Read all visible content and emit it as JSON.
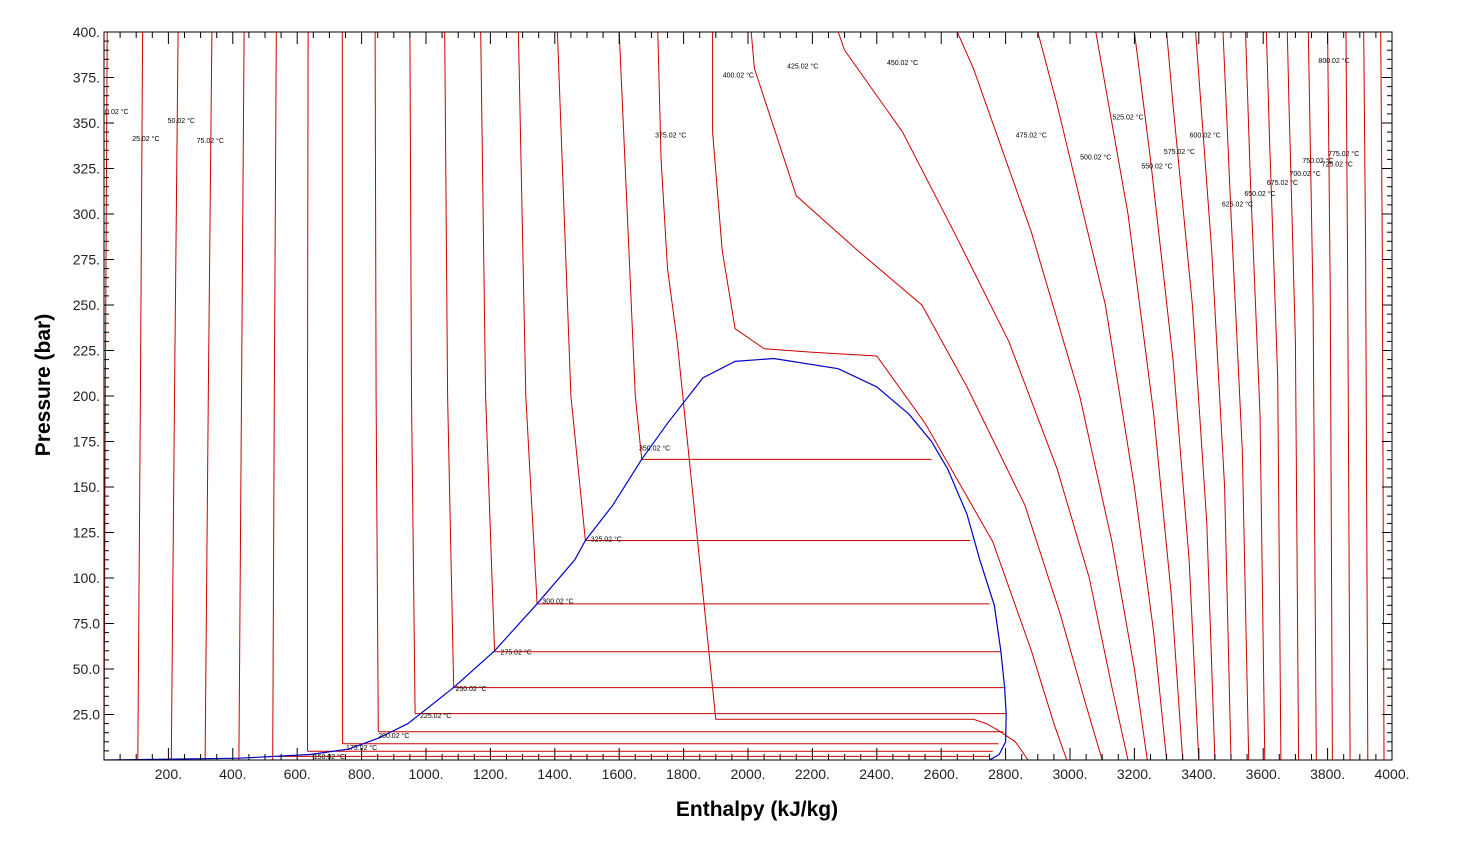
{
  "chart_data": {
    "type": "line",
    "title": "",
    "xlabel": "Enthalpy (kJ/kg)",
    "ylabel": "Pressure (bar)",
    "xlim": [
      0,
      4000
    ],
    "ylim": [
      0,
      400
    ],
    "grid": false,
    "x_ticks": [
      "200.",
      "400.",
      "600.",
      "800.",
      "1000.",
      "1200.",
      "1400.",
      "1600.",
      "1800.",
      "2000.",
      "2200.",
      "2400.",
      "2600.",
      "2800.",
      "3000.",
      "3200.",
      "3400.",
      "3600.",
      "3800.",
      "4000."
    ],
    "y_ticks": [
      "25.0",
      "50.0",
      "75.0",
      "100.",
      "125.",
      "150.",
      "175.",
      "200.",
      "225.",
      "250.",
      "275.",
      "300.",
      "325.",
      "350.",
      "375.",
      "400."
    ],
    "colors": {
      "saturation_dome": "#0000cc",
      "isotherms": "#cc0000",
      "axes": "#000000"
    },
    "saturation_dome": {
      "name": "",
      "points": [
        [
          0,
          0
        ],
        [
          420,
          1
        ],
        [
          640,
          3
        ],
        [
          760,
          6
        ],
        [
          852,
          12
        ],
        [
          944,
          20
        ],
        [
          1087,
          40
        ],
        [
          1213,
          60
        ],
        [
          1345,
          85.8
        ],
        [
          1462,
          110
        ],
        [
          1495,
          120.6
        ],
        [
          1580,
          140
        ],
        [
          1670,
          165.2
        ],
        [
          1750,
          185
        ],
        [
          1860,
          210
        ],
        [
          1960,
          219
        ],
        [
          2080,
          220.6
        ],
        [
          2280,
          215
        ],
        [
          2400,
          205
        ],
        [
          2500,
          190
        ],
        [
          2570,
          175
        ],
        [
          2620,
          160
        ],
        [
          2680,
          135
        ],
        [
          2720,
          110
        ],
        [
          2765,
          85
        ],
        [
          2785,
          60
        ],
        [
          2797,
          40
        ],
        [
          2802,
          25
        ],
        [
          2800,
          10
        ],
        [
          2780,
          3
        ],
        [
          2760,
          1
        ],
        [
          2750,
          0
        ]
      ]
    },
    "isotherms": [
      {
        "label": "0.02 °C",
        "label_pos": [
          40,
          355
        ],
        "points": [
          [
            0.1,
            0
          ],
          [
            4,
            200
          ],
          [
            10,
            400
          ]
        ]
      },
      {
        "label": "25.02 °C",
        "label_pos": [
          130,
          340
        ],
        "points": [
          [
            105,
            0
          ],
          [
            113,
            200
          ],
          [
            120,
            400
          ]
        ]
      },
      {
        "label": "50.02 °C",
        "label_pos": [
          240,
          350
        ],
        "points": [
          [
            209,
            0
          ],
          [
            219,
            200
          ],
          [
            230,
            400
          ]
        ]
      },
      {
        "label": "75.02 °C",
        "label_pos": [
          330,
          339
        ],
        "points": [
          [
            314,
            0
          ],
          [
            324,
            200
          ],
          [
            335,
            400
          ]
        ]
      },
      {
        "label": "",
        "label_pos": null,
        "points": [
          [
            419,
            0
          ],
          [
            427,
            200
          ],
          [
            435,
            400
          ]
        ]
      },
      {
        "label": "",
        "label_pos": null,
        "points": [
          [
            524,
            0
          ],
          [
            529,
            200
          ],
          [
            535,
            400
          ]
        ]
      },
      {
        "label": "150.02 °C",
        "label_pos": [
          700,
          0.5
        ],
        "points": [
          [
            632,
            4.8
          ],
          [
            632,
            200
          ],
          [
            634,
            400
          ]
        ]
      },
      {
        "label": "175.02 °C",
        "label_pos": [
          800,
          5.5
        ],
        "points": [
          [
            741,
            8.9
          ],
          [
            740,
            200
          ],
          [
            740,
            400
          ]
        ]
      },
      {
        "label": "200.02 °C",
        "label_pos": [
          900,
          12
        ],
        "points": [
          [
            852,
            15.5
          ],
          [
            845,
            200
          ],
          [
            842,
            400
          ]
        ]
      },
      {
        "label": "225.02 °C",
        "label_pos": [
          1030,
          23
        ],
        "points": [
          [
            966,
            25.5
          ],
          [
            955,
            200
          ],
          [
            950,
            400
          ]
        ]
      },
      {
        "label": "250.02 °C",
        "label_pos": [
          1140,
          38
        ],
        "points": [
          [
            1086,
            39.8
          ],
          [
            1067,
            200
          ],
          [
            1058,
            400
          ]
        ]
      },
      {
        "label": "275.02 °C",
        "label_pos": [
          1280,
          58
        ],
        "points": [
          [
            1213,
            59.5
          ],
          [
            1185,
            200
          ],
          [
            1170,
            400
          ]
        ]
      },
      {
        "label": "300.02 °C",
        "label_pos": [
          1410,
          86
        ],
        "points": [
          [
            1345,
            85.9
          ],
          [
            1310,
            200
          ],
          [
            1287,
            400
          ]
        ]
      },
      {
        "label": "325.02 °C",
        "label_pos": [
          1560,
          120
        ],
        "points": [
          [
            1495,
            120.6
          ],
          [
            1450,
            200
          ],
          [
            1408,
            400
          ]
        ]
      },
      {
        "label": "350.02 °C",
        "label_pos": [
          1710,
          170
        ],
        "points": [
          [
            1670,
            165.4
          ],
          [
            1650,
            200
          ],
          [
            1625,
            300
          ],
          [
            1600,
            400
          ]
        ]
      },
      {
        "label": "375.02 °C",
        "label_pos": [
          1760,
          342
        ],
        "points": [
          [
            2870,
            0
          ],
          [
            2830,
            10
          ],
          [
            2780,
            16
          ],
          [
            2740,
            20
          ],
          [
            2700,
            22.4
          ],
          [
            1900,
            22.4
          ],
          [
            1780,
            230
          ],
          [
            1750,
            270
          ],
          [
            1730,
            330
          ],
          [
            1720,
            400
          ]
        ]
      },
      {
        "label": "400.02 °C",
        "label_pos": [
          1970,
          375
        ],
        "points": [
          [
            2990,
            0
          ],
          [
            2950,
            20
          ],
          [
            2880,
            60
          ],
          [
            2760,
            120
          ],
          [
            2550,
            185
          ],
          [
            2400,
            222
          ],
          [
            2200,
            224
          ],
          [
            2050,
            226
          ],
          [
            1960,
            237
          ],
          [
            1920,
            280
          ],
          [
            1890,
            345
          ],
          [
            1890,
            400
          ]
        ]
      },
      {
        "label": "425.02 °C",
        "label_pos": [
          2170,
          380
        ],
        "points": [
          [
            3100,
            0
          ],
          [
            3050,
            30
          ],
          [
            2970,
            80
          ],
          [
            2860,
            140
          ],
          [
            2680,
            205
          ],
          [
            2540,
            250
          ],
          [
            2340,
            280
          ],
          [
            2150,
            310
          ],
          [
            2020,
            380
          ],
          [
            2010,
            400
          ]
        ]
      },
      {
        "label": "450.02 °C",
        "label_pos": [
          2480,
          382
        ],
        "points": [
          [
            3180,
            0
          ],
          [
            3130,
            40
          ],
          [
            3060,
            100
          ],
          [
            2960,
            160
          ],
          [
            2810,
            230
          ],
          [
            2640,
            290
          ],
          [
            2480,
            345
          ],
          [
            2300,
            390
          ],
          [
            2280,
            400
          ]
        ]
      },
      {
        "label": "475.02 °C",
        "label_pos": [
          2880,
          342
        ],
        "points": [
          [
            3240,
            0
          ],
          [
            3200,
            50
          ],
          [
            3130,
            120
          ],
          [
            3030,
            200
          ],
          [
            2880,
            290
          ],
          [
            2700,
            380
          ],
          [
            2650,
            400
          ]
        ]
      },
      {
        "label": "500.02 °C",
        "label_pos": [
          3080,
          330
        ],
        "points": [
          [
            3300,
            0
          ],
          [
            3260,
            70
          ],
          [
            3200,
            150
          ],
          [
            3110,
            250
          ],
          [
            2960,
            360
          ],
          [
            2900,
            400
          ]
        ]
      },
      {
        "label": "525.02 °C",
        "label_pos": [
          3180,
          352
        ],
        "points": [
          [
            3350,
            0
          ],
          [
            3315,
            90
          ],
          [
            3260,
            190
          ],
          [
            3180,
            300
          ],
          [
            3080,
            400
          ]
        ]
      },
      {
        "label": "550.02 °C",
        "label_pos": [
          3270,
          325
        ],
        "points": [
          [
            3400,
            0
          ],
          [
            3370,
            110
          ],
          [
            3320,
            220
          ],
          [
            3250,
            330
          ],
          [
            3200,
            400
          ]
        ]
      },
      {
        "label": "575.02 °C",
        "label_pos": [
          3340,
          333
        ],
        "points": [
          [
            3450,
            0
          ],
          [
            3425,
            130
          ],
          [
            3380,
            250
          ],
          [
            3320,
            360
          ],
          [
            3300,
            400
          ]
        ]
      },
      {
        "label": "600.02 °C",
        "label_pos": [
          3420,
          342
        ],
        "points": [
          [
            3500,
            0
          ],
          [
            3480,
            150
          ],
          [
            3440,
            280
          ],
          [
            3390,
            400
          ]
        ]
      },
      {
        "label": "625.02 °C",
        "label_pos": [
          3520,
          304
        ],
        "points": [
          [
            3555,
            0
          ],
          [
            3535,
            170
          ],
          [
            3500,
            300
          ],
          [
            3475,
            400
          ]
        ]
      },
      {
        "label": "650.02 °C",
        "label_pos": [
          3590,
          310
        ],
        "points": [
          [
            3605,
            0
          ],
          [
            3590,
            190
          ],
          [
            3560,
            320
          ],
          [
            3545,
            400
          ]
        ]
      },
      {
        "label": "675.02 °C",
        "label_pos": [
          3660,
          316
        ],
        "points": [
          [
            3655,
            0
          ],
          [
            3645,
            210
          ],
          [
            3620,
            340
          ],
          [
            3610,
            400
          ]
        ]
      },
      {
        "label": "700.02 °C",
        "label_pos": [
          3730,
          321
        ],
        "points": [
          [
            3710,
            0
          ],
          [
            3700,
            230
          ],
          [
            3680,
            360
          ],
          [
            3675,
            400
          ]
        ]
      },
      {
        "label": "725.02 °C",
        "label_pos": [
          3830,
          326
        ],
        "points": [
          [
            3765,
            0
          ],
          [
            3755,
            250
          ],
          [
            3740,
            400
          ]
        ]
      },
      {
        "label": "750.02 °C",
        "label_pos": [
          3770,
          328
        ],
        "points": [
          [
            3815,
            0
          ],
          [
            3808,
            260
          ],
          [
            3800,
            400
          ]
        ]
      },
      {
        "label": "775.02 °C",
        "label_pos": [
          3850,
          332
        ],
        "points": [
          [
            3870,
            0
          ],
          [
            3862,
            270
          ],
          [
            3857,
            400
          ]
        ]
      },
      {
        "label": "800.02 °C",
        "label_pos": [
          3820,
          383
        ],
        "points": [
          [
            3925,
            0
          ],
          [
            3918,
            280
          ],
          [
            3912,
            400
          ]
        ]
      },
      {
        "label": "",
        "label_pos": null,
        "points": [
          [
            3975,
            0
          ],
          [
            3970,
            280
          ],
          [
            3965,
            400
          ]
        ]
      }
    ],
    "isobars_in_dome": [
      {
        "p": 165.2,
        "h": [
          1670,
          2570
        ]
      },
      {
        "p": 120.6,
        "h": [
          1495,
          2690
        ]
      },
      {
        "p": 85.8,
        "h": [
          1345,
          2750
        ]
      },
      {
        "p": 59.5,
        "h": [
          1213,
          2785
        ]
      },
      {
        "p": 39.8,
        "h": [
          1086,
          2800
        ]
      },
      {
        "p": 25.5,
        "h": [
          966,
          2803
        ]
      },
      {
        "p": 15.5,
        "h": [
          852,
          2793
        ]
      },
      {
        "p": 8.9,
        "h": [
          741,
          2778
        ]
      },
      {
        "p": 4.8,
        "h": [
          632,
          2760
        ]
      },
      {
        "p": 2.0,
        "h": [
          540,
          2750
        ]
      }
    ]
  }
}
